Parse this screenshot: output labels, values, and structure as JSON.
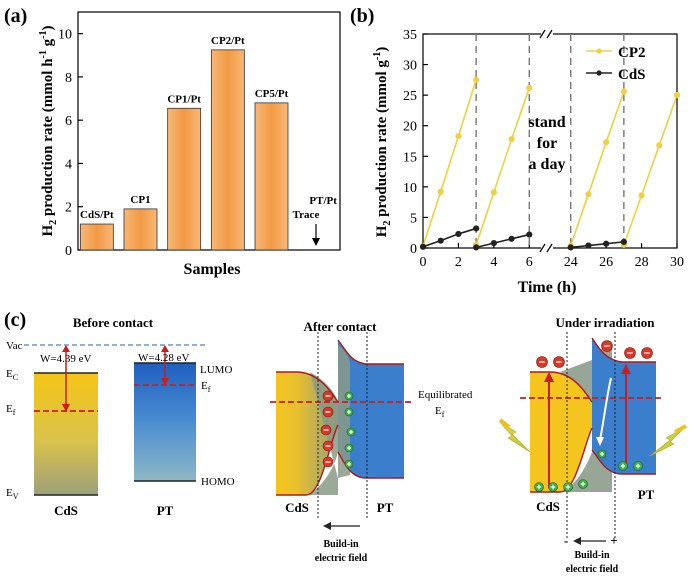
{
  "chart_data": [
    {
      "panel": "(a)",
      "type": "bar",
      "categories": [
        "CdS/Pt",
        "CP1",
        "CP1/Pt",
        "CP2/Pt",
        "CP5/Pt",
        "PT/Pt"
      ],
      "values": [
        1.2,
        1.9,
        6.55,
        9.25,
        6.8,
        null
      ],
      "annotations": [
        "Trace"
      ],
      "xlabel": "Samples",
      "ylabel": "H2 production rate (mmol h-1 g-1)",
      "ylim": [
        0,
        11
      ],
      "yticks": [
        0,
        2,
        4,
        6,
        8,
        10
      ],
      "bar_color": "#f5a04a"
    },
    {
      "panel": "(b)",
      "type": "line",
      "xlabel": "Time (h)",
      "ylabel": "H2 production rate (mmol g-1)",
      "ylim": [
        0,
        35
      ],
      "yticks": [
        0,
        5,
        10,
        15,
        20,
        25,
        30,
        35
      ],
      "xticks": [
        "0",
        "2",
        "4",
        "6",
        "24",
        "26",
        "28",
        "30"
      ],
      "annotation": [
        "stand",
        "for",
        "a day"
      ],
      "series": [
        {
          "name": "CP2",
          "color": "#f0d040",
          "cycles": [
            {
              "x": [
                0,
                1,
                2,
                3
              ],
              "y": [
                0.3,
                9.2,
                18.3,
                27.5
              ]
            },
            {
              "x": [
                3,
                4,
                5,
                6
              ],
              "y": [
                0.5,
                9.1,
                17.8,
                26.2
              ]
            },
            {
              "x": [
                24,
                25,
                26,
                27
              ],
              "y": [
                0.4,
                8.8,
                17.3,
                25.6
              ]
            },
            {
              "x": [
                27,
                28,
                29,
                30
              ],
              "y": [
                0.5,
                8.6,
                16.8,
                25.0
              ]
            }
          ]
        },
        {
          "name": "CdS",
          "color": "#222222",
          "cycles": [
            {
              "x": [
                0,
                1,
                2,
                3
              ],
              "y": [
                0.2,
                1.2,
                2.3,
                3.2
              ]
            },
            {
              "x": [
                3,
                4,
                5,
                6
              ],
              "y": [
                0.1,
                0.8,
                1.5,
                2.2
              ]
            },
            {
              "x": [
                24,
                25,
                26,
                27
              ],
              "y": [
                0.1,
                0.4,
                0.7,
                1.0
              ]
            }
          ]
        }
      ]
    },
    {
      "panel": "(c)",
      "type": "diagram",
      "sections": {
        "before": {
          "title": "Before contact",
          "vac": "Vac",
          "w_cds": "W=4.39 eV",
          "w_pt": "W=4.28 eV",
          "lumo": "LUMO",
          "homo": "HOMO",
          "ec": "E",
          "ec_sub": "C",
          "ef": "E",
          "ef_sub": "f",
          "ev": "E",
          "ev_sub": "V",
          "ef2": "E",
          "ef2_sub": "f",
          "cds": "CdS",
          "pt": "PT"
        },
        "after": {
          "title": "After contact",
          "equil1": "Equilibrated",
          "equil2": "E",
          "equil2_sub": "f",
          "cds": "CdS",
          "pt": "PT",
          "field1": "Build-in",
          "field2": "electric field"
        },
        "irradiation": {
          "title": "Under irradiation",
          "cds": "CdS",
          "pt": "PT",
          "field1": "Build-in",
          "field2": "electric field",
          "minus": "-",
          "plus": "+"
        }
      }
    }
  ]
}
